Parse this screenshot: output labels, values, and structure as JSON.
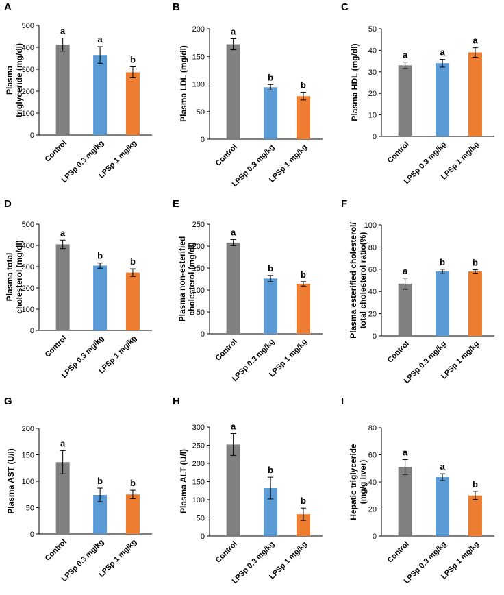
{
  "figure": {
    "colors": {
      "control": "#808080",
      "low": "#5b9bd5",
      "high": "#ed7d31"
    }
  },
  "chart_data": [
    {
      "type": "bar",
      "panel": "A",
      "ylabel_lines": [
        "Plasma",
        "triglyceride (mg/dl)"
      ],
      "categories": [
        "Control",
        "LPSp 0.3 mg/kg",
        "LPSp 1 mg/kg"
      ],
      "values": [
        412,
        365,
        286
      ],
      "errors": [
        30,
        38,
        25
      ],
      "labels": [
        "a",
        "a",
        "b"
      ],
      "ylim": [
        0,
        500
      ],
      "yticks": [
        0,
        100,
        200,
        300,
        400,
        500
      ]
    },
    {
      "type": "bar",
      "panel": "B",
      "ylabel_lines": [
        "Plasma LDL (mg/dl)"
      ],
      "categories": [
        "Control",
        "LPSp 0.3 mg/kg",
        "LPSp 1 mg/kg"
      ],
      "values": [
        172,
        94,
        78
      ],
      "errors": [
        10,
        5,
        7
      ],
      "labels": [
        "a",
        "b",
        "b"
      ],
      "ylim": [
        0,
        200
      ],
      "yticks": [
        0,
        50,
        100,
        150,
        200
      ]
    },
    {
      "type": "bar",
      "panel": "C",
      "ylabel_lines": [
        "Plasma HDL (mg/dl)"
      ],
      "categories": [
        "Control",
        "LPSp 0.3 mg/kg",
        "LPSp 1 mg/kg"
      ],
      "values": [
        33,
        34,
        39
      ],
      "errors": [
        1.5,
        1.8,
        2.2
      ],
      "labels": [
        "a",
        "a",
        "a"
      ],
      "ylim": [
        0,
        50
      ],
      "yticks": [
        0,
        10,
        20,
        30,
        40,
        50
      ]
    },
    {
      "type": "bar",
      "panel": "D",
      "ylabel_lines": [
        "Plasma total",
        "cholesterol (mg/dl)"
      ],
      "categories": [
        "Control",
        "LPSp 0.3 mg/kg",
        "LPSp 1 mg/kg"
      ],
      "values": [
        405,
        305,
        272
      ],
      "errors": [
        20,
        12,
        18
      ],
      "labels": [
        "a",
        "b",
        "b"
      ],
      "ylim": [
        0,
        500
      ],
      "yticks": [
        0,
        100,
        200,
        300,
        400,
        500
      ]
    },
    {
      "type": "bar",
      "panel": "E",
      "ylabel_lines": [
        "Plasma non-esterified",
        "cholesterol (mg/dl)"
      ],
      "categories": [
        "Control",
        "LPSp 0.3 mg/kg",
        "LPSp 1 mg/kg"
      ],
      "values": [
        208,
        126,
        114
      ],
      "errors": [
        7,
        7,
        5
      ],
      "labels": [
        "a",
        "b",
        "b"
      ],
      "ylim": [
        0,
        250
      ],
      "yticks": [
        0,
        50,
        100,
        150,
        200,
        250
      ]
    },
    {
      "type": "bar",
      "panel": "F",
      "ylabel_lines": [
        "Plasma esterified cholesterol/",
        "total cholesterol ratio(%)"
      ],
      "categories": [
        "Control",
        "LPSp 0.3 mg/kg",
        "LPSp 1 mg/kg"
      ],
      "values": [
        47,
        58,
        58
      ],
      "errors": [
        5,
        2,
        1.5
      ],
      "labels": [
        "a",
        "b",
        "b"
      ],
      "ylim": [
        0,
        100
      ],
      "yticks": [
        0,
        20,
        40,
        60,
        80,
        100
      ]
    },
    {
      "type": "bar",
      "panel": "G",
      "ylabel_lines": [
        "Plasma AST (U/l)"
      ],
      "categories": [
        "Control",
        "LPSp 0.3 mg/kg",
        "LPSp 1 mg/kg"
      ],
      "values": [
        136,
        74,
        75
      ],
      "errors": [
        22,
        13,
        8
      ],
      "labels": [
        "a",
        "b",
        "b"
      ],
      "ylim": [
        0,
        200
      ],
      "yticks": [
        0,
        50,
        100,
        150,
        200
      ]
    },
    {
      "type": "bar",
      "panel": "H",
      "ylabel_lines": [
        "Plasma ALT (U/l)"
      ],
      "categories": [
        "Control",
        "LPSp 0.3 mg/kg",
        "LPSp 1 mg/kg"
      ],
      "values": [
        252,
        132,
        60
      ],
      "errors": [
        30,
        30,
        17
      ],
      "labels": [
        "a",
        "b",
        "b"
      ],
      "ylim": [
        0,
        300
      ],
      "yticks": [
        0,
        50,
        100,
        150,
        200,
        250,
        300
      ]
    },
    {
      "type": "bar",
      "panel": "I",
      "ylabel_lines": [
        "Hepatic triglyceride",
        "(mg/g liver)"
      ],
      "categories": [
        "Control",
        "LPSp 0.3 mg/kg",
        "LPSp 1 mg/kg"
      ],
      "values": [
        51,
        43.5,
        30
      ],
      "errors": [
        5.5,
        2.5,
        3
      ],
      "labels": [
        "a",
        "a",
        "b"
      ],
      "ylim": [
        0,
        80
      ],
      "yticks": [
        0,
        20,
        40,
        60,
        80
      ]
    }
  ]
}
